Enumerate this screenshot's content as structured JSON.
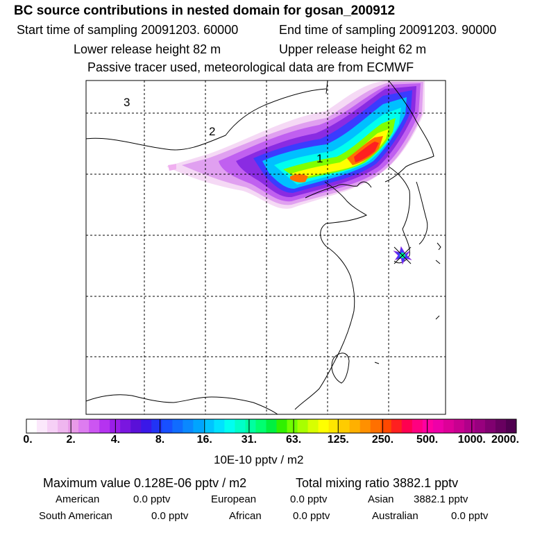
{
  "header": {
    "title": "BC  source contributions in nested domain for gosan_200912",
    "start_time": "Start time of sampling 20091203. 60000",
    "end_time": "End time of sampling 20091203. 90000",
    "lower_release": "Lower release height   82 m",
    "upper_release": "Upper release height   62 m",
    "tracer_note": "Passive tracer used, meteorological data are from ECMWF"
  },
  "map": {
    "region_labels": [
      "3",
      "2",
      "1"
    ],
    "receptor_site": "gosan",
    "receptor_icon": "star-marker-icon",
    "plume_colors": [
      "#f5d9f5",
      "#e0a0f0",
      "#c060f0",
      "#8a2be2",
      "#3b3bff",
      "#1e90ff",
      "#00c0ff",
      "#00ffee",
      "#00ff99",
      "#7fff00",
      "#ffff00",
      "#ffc000",
      "#ff7000",
      "#ff2020",
      "#ff0090"
    ]
  },
  "colorbar": {
    "tick_labels": [
      "0.",
      "2.",
      "4.",
      "8.",
      "16.",
      "31.",
      "63.",
      "125.",
      "250.",
      "500.",
      "1000.",
      "2000."
    ],
    "colors": [
      "#ffffff",
      "#fbe8fb",
      "#f6d0f6",
      "#efb6ef",
      "#e89ae8",
      "#dd7cf0",
      "#cc55f2",
      "#b533f0",
      "#9a1ee8",
      "#7a16e0",
      "#5a10d8",
      "#3a18e8",
      "#2234f5",
      "#1850ff",
      "#106cff",
      "#0a88ff",
      "#00a4ff",
      "#00c4ff",
      "#00e2ff",
      "#00fff0",
      "#00ffc8",
      "#00ffa0",
      "#00ff70",
      "#00f040",
      "#30f000",
      "#70ff00",
      "#a8ff00",
      "#d8ff00",
      "#ffff00",
      "#ffe600",
      "#ffcc00",
      "#ffb000",
      "#ff9000",
      "#ff7000",
      "#ff4800",
      "#ff2020",
      "#ff0050",
      "#ff0080",
      "#ff00a0",
      "#ee00a8",
      "#dd0098",
      "#c80090",
      "#b0008a",
      "#98007e",
      "#800070",
      "#680060",
      "#500050"
    ],
    "units": "10E-10 pptv / m2"
  },
  "stats": {
    "max_value": "Maximum value  0.128E-06 pptv / m2",
    "total_mixing": "Total mixing ratio     3882.1 pptv",
    "american_label": "American",
    "american_value": "0.0 pptv",
    "european_label": "European",
    "european_value": "0.0 pptv",
    "asian_label": "Asian",
    "asian_value": "3882.1 pptv",
    "south_american_label": "South American",
    "south_american_value": "0.0 pptv",
    "african_label": "African",
    "african_value": "0.0 pptv",
    "australian_label": "Australian",
    "australian_value": "0.0 pptv"
  }
}
